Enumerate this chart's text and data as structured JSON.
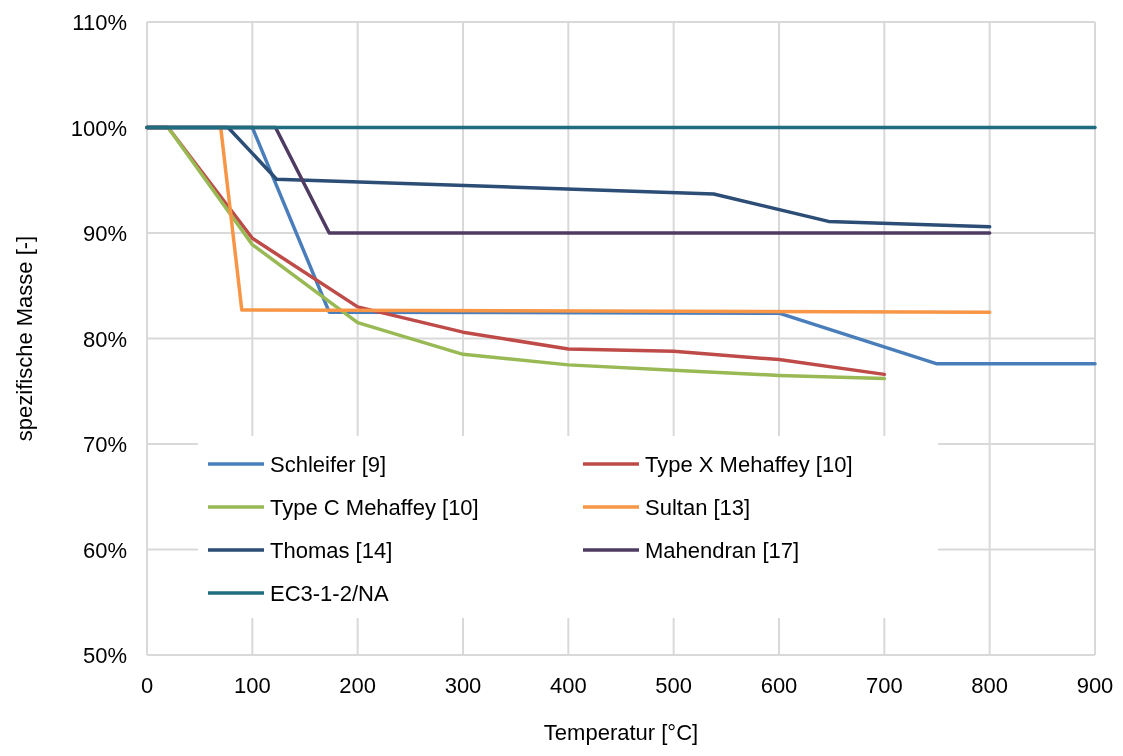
{
  "chart_data": {
    "type": "line",
    "xlabel": "Temperatur [°C]",
    "ylabel": "spezifische Masse [-]",
    "xlim": [
      0,
      900
    ],
    "xticks": [
      0,
      100,
      200,
      300,
      400,
      500,
      600,
      700,
      800,
      900
    ],
    "ylim": [
      50,
      110
    ],
    "yticks": [
      {
        "value": 50,
        "label": "50%"
      },
      {
        "value": 60,
        "label": "60%"
      },
      {
        "value": 70,
        "label": "70%"
      },
      {
        "value": 80,
        "label": "80%"
      },
      {
        "value": 90,
        "label": "90%"
      },
      {
        "value": 100,
        "label": "100%"
      },
      {
        "value": 110,
        "label": "110%"
      }
    ],
    "grid": true,
    "legend": "bottom",
    "marker": "none",
    "line_style": "solid",
    "series": [
      {
        "name": "Schleifer [9]",
        "color": "#4a7ebb",
        "x": [
          0,
          100,
          173,
          600,
          750,
          900
        ],
        "values": [
          100,
          100,
          82.5,
          82.4,
          77.6,
          77.6
        ]
      },
      {
        "name": "Type X Mehaffey [10]",
        "color": "#be4b48",
        "x": [
          0,
          20,
          100,
          200,
          300,
          400,
          500,
          600,
          700
        ],
        "values": [
          100,
          100,
          89.5,
          83,
          80.6,
          79,
          78.8,
          78,
          76.6
        ]
      },
      {
        "name": "Type C Mehaffey [10]",
        "color": "#98b954",
        "x": [
          0,
          20,
          100,
          200,
          300,
          400,
          500,
          600,
          700
        ],
        "values": [
          100,
          100,
          88.9,
          81.5,
          78.5,
          77.5,
          77,
          76.5,
          76.2
        ]
      },
      {
        "name": "Sultan [13]",
        "color": "#f79646",
        "x": [
          70,
          90,
          800
        ],
        "values": [
          100,
          82.7,
          82.5
        ]
      },
      {
        "name": "Thomas [14]",
        "color": "#2c4d75",
        "x": [
          0,
          77,
          123,
          538,
          647,
          800
        ],
        "values": [
          100,
          100,
          95.1,
          93.7,
          91.1,
          90.6
        ]
      },
      {
        "name": "Mahendran [17]",
        "color": "#4f3b62",
        "x": [
          0,
          122,
          173,
          800
        ],
        "values": [
          100,
          100,
          90,
          90
        ]
      },
      {
        "name": "EC3-1-2/NA",
        "color": "#1f6d7e",
        "x": [
          0,
          900
        ],
        "values": [
          100,
          100
        ]
      }
    ]
  }
}
